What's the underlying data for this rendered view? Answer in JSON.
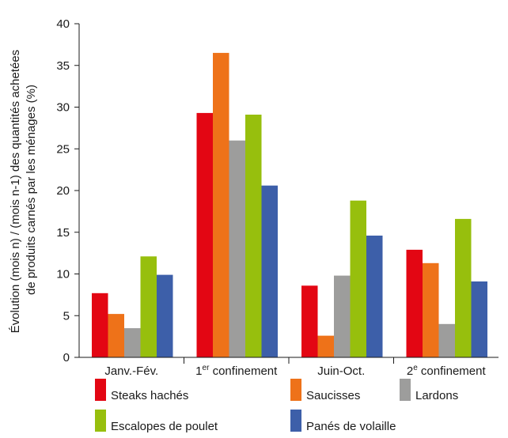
{
  "chart_data": {
    "type": "bar",
    "ylabel_lines": [
      "Évolution (mois n) / (mois n-1) des quantités achetées",
      "de produits carnés par les ménages (%)"
    ],
    "categories": [
      {
        "pre": "Janv.-Fév.",
        "sup": "",
        "post": ""
      },
      {
        "pre": "1",
        "sup": "er",
        "post": " confinement"
      },
      {
        "pre": "Juin-Oct.",
        "sup": "",
        "post": ""
      },
      {
        "pre": "2",
        "sup": "e",
        "post": " confinement"
      }
    ],
    "yticks": [
      "0",
      "5",
      "10",
      "15",
      "20",
      "25",
      "30",
      "35",
      "40"
    ],
    "ylim": [
      0,
      40
    ],
    "grid": false,
    "series": [
      {
        "name": "Steaks hachés",
        "color": "#e30613",
        "values": [
          7.7,
          29.3,
          8.6,
          12.9
        ]
      },
      {
        "name": "Saucisses",
        "color": "#ee7219",
        "values": [
          5.2,
          36.5,
          2.6,
          11.3
        ]
      },
      {
        "name": "Lardons",
        "color": "#9d9d9c",
        "values": [
          3.5,
          26.0,
          9.8,
          4.0
        ]
      },
      {
        "name": "Escalopes de poulet",
        "color": "#97bf0d",
        "values": [
          12.1,
          29.1,
          18.8,
          16.6
        ]
      },
      {
        "name": "Panés de volaille",
        "color": "#3d5fa9",
        "values": [
          9.9,
          20.6,
          14.6,
          9.1
        ]
      }
    ]
  }
}
